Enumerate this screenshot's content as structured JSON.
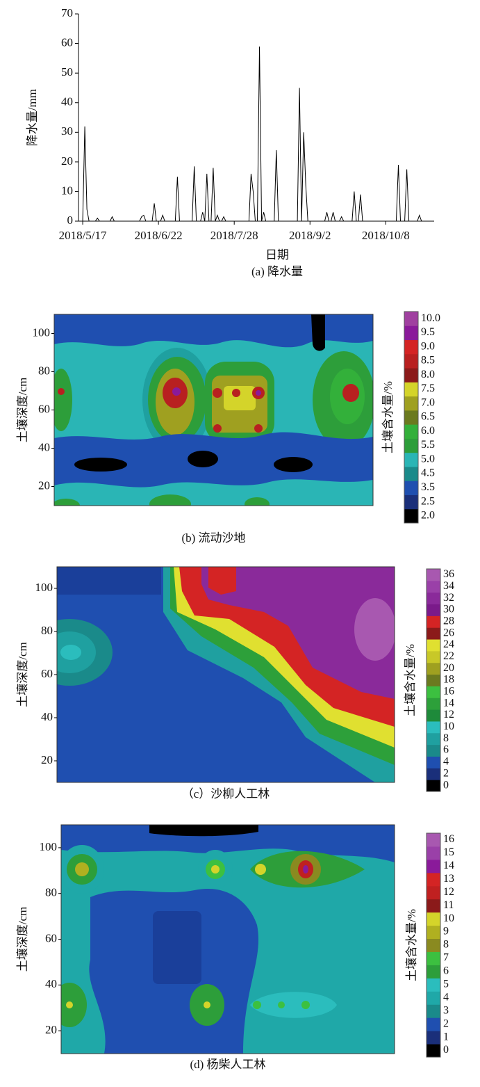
{
  "chart_data": [
    {
      "type": "line",
      "ylabel": "降水量/mm",
      "xlabel": "日期",
      "caption": "(a) 降水量",
      "color": "#000000",
      "x": [
        "2018-05-15",
        "2018-05-17",
        "2018-05-18",
        "2018-05-19",
        "2018-05-20",
        "2018-05-23",
        "2018-05-24",
        "2018-05-25",
        "2018-05-30",
        "2018-05-31",
        "2018-06-01",
        "2018-06-13",
        "2018-06-14",
        "2018-06-15",
        "2018-06-16",
        "2018-06-19",
        "2018-06-20",
        "2018-06-21",
        "2018-06-23",
        "2018-06-24",
        "2018-06-25",
        "2018-06-30",
        "2018-07-01",
        "2018-07-02",
        "2018-07-08",
        "2018-07-09",
        "2018-07-10",
        "2018-07-12",
        "2018-07-13",
        "2018-07-14",
        "2018-07-15",
        "2018-07-16",
        "2018-07-17",
        "2018-07-18",
        "2018-07-19",
        "2018-07-20",
        "2018-07-21",
        "2018-07-22",
        "2018-07-23",
        "2018-07-24",
        "2018-08-04",
        "2018-08-05",
        "2018-08-06",
        "2018-08-07",
        "2018-08-08",
        "2018-08-09",
        "2018-08-10",
        "2018-08-11",
        "2018-08-12",
        "2018-08-16",
        "2018-08-17",
        "2018-08-18",
        "2018-08-27",
        "2018-08-28",
        "2018-08-29",
        "2018-08-30",
        "2018-08-31",
        "2018-09-01",
        "2018-09-09",
        "2018-09-10",
        "2018-09-11",
        "2018-09-12",
        "2018-09-13",
        "2018-09-14",
        "2018-09-16",
        "2018-09-17",
        "2018-09-18",
        "2018-09-22",
        "2018-09-23",
        "2018-09-24",
        "2018-09-25",
        "2018-09-26",
        "2018-09-27",
        "2018-10-13",
        "2018-10-14",
        "2018-10-15",
        "2018-10-17",
        "2018-10-18",
        "2018-10-19",
        "2018-10-23",
        "2018-10-24",
        "2018-10-25",
        "2018-10-31"
      ],
      "values": [
        0,
        0,
        32,
        4,
        0,
        0,
        1,
        0,
        0,
        1.5,
        0,
        0,
        1.5,
        2,
        0,
        0,
        6,
        0,
        0,
        2,
        0,
        0,
        15,
        0,
        0,
        18.5,
        0,
        0,
        3,
        0,
        16,
        0,
        0,
        18,
        0,
        2,
        0,
        0,
        1.5,
        0,
        0,
        16,
        10,
        0,
        0,
        59,
        0,
        3,
        0,
        0,
        24,
        0,
        0,
        45,
        0,
        30,
        12,
        0,
        0,
        3,
        0,
        0,
        3,
        0,
        0,
        1.5,
        0,
        0,
        10,
        0,
        0,
        9,
        0,
        0,
        19,
        0,
        0,
        17.5,
        0,
        0,
        2,
        0,
        0
      ],
      "xlim": [
        "2018-05-15",
        "2018-10-31"
      ],
      "xticks": [
        {
          "value": "2018-05-17",
          "label": "2018/5/17"
        },
        {
          "value": "2018-06-22",
          "label": "2018/6/22"
        },
        {
          "value": "2018-07-28",
          "label": "2018/7/28"
        },
        {
          "value": "2018-09-02",
          "label": "2018/9/2"
        },
        {
          "value": "2018-10-08",
          "label": "2018/10/8"
        }
      ],
      "ylim": [
        0,
        70
      ],
      "yticks": [
        0,
        10,
        20,
        30,
        40,
        50,
        60,
        70
      ]
    },
    {
      "type": "contour",
      "ylabel": "土壤深度/cm",
      "colorbar_label": "土壤含水量/%",
      "caption": "(b) 流动沙地",
      "ylim": [
        10,
        110
      ],
      "yticks": [
        20,
        40,
        60,
        80,
        100
      ],
      "levels": [
        {
          "value": 2,
          "label": "2.0"
        },
        2.5,
        3.5,
        4.5,
        {
          "value": 5,
          "label": "5.0"
        },
        5.5,
        {
          "value": 6,
          "label": "6.0"
        },
        6.5,
        {
          "value": 7,
          "label": "7.0"
        },
        7.5,
        {
          "value": 8,
          "label": "8.0"
        },
        8.5,
        {
          "value": 9,
          "label": "9.0"
        },
        9.5,
        {
          "value": 10,
          "label": "10.0"
        }
      ],
      "colors": [
        "#000000",
        "#1a2f7a",
        "#1f4fb0",
        "#1a8a8a",
        "#2ab5b5",
        "#2d9e3a",
        "#33b03a",
        "#6b7a1f",
        "#9fa020",
        "#d4d42a",
        "#8b1a1a",
        "#b82020",
        "#d42424",
        "#8a1a9a",
        "#a040a0"
      ]
    },
    {
      "type": "contour",
      "ylabel": "土壤深度/cm",
      "colorbar_label": "土壤含水量/%",
      "caption": "（c）沙柳人工林",
      "ylim": [
        10,
        110
      ],
      "yticks": [
        20,
        40,
        60,
        80,
        100
      ],
      "levels": [
        0,
        2,
        4,
        6,
        8,
        10,
        12,
        14,
        16,
        18,
        20,
        22,
        24,
        26,
        28,
        30,
        32,
        34,
        36
      ],
      "colors": [
        "#000000",
        "#1a2f7a",
        "#1f4fb0",
        "#1a8a8a",
        "#1fa0a0",
        "#2bbdbd",
        "#1e8a3a",
        "#2da03a",
        "#3cc040",
        "#6b7a1f",
        "#9fa020",
        "#c8c828",
        "#e0e030",
        "#8b1a1a",
        "#d42424",
        "#7a1a8a",
        "#8a2a9a",
        "#9a40a8",
        "#a858b0"
      ]
    },
    {
      "type": "contour",
      "ylabel": "土壤深度/cm",
      "colorbar_label": "土壤含水量/%",
      "caption": "(d) 杨柴人工林",
      "ylim": [
        10,
        110
      ],
      "yticks": [
        20,
        40,
        60,
        80,
        100
      ],
      "levels": [
        0,
        1,
        2,
        3,
        4,
        5,
        6,
        7,
        8,
        9,
        10,
        11,
        12,
        13,
        14,
        15,
        16
      ],
      "colors": [
        "#000000",
        "#1a2f7a",
        "#1f4fb0",
        "#1a8a8a",
        "#1fa8a8",
        "#2bbdbd",
        "#2d9e3a",
        "#3cc040",
        "#8a8a20",
        "#b0b020",
        "#d4d42a",
        "#8b1a1a",
        "#c02020",
        "#d42424",
        "#8a1a9a",
        "#9a40a8",
        "#a858b0"
      ]
    }
  ]
}
